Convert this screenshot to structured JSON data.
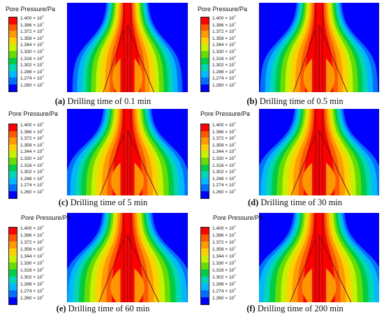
{
  "legend": {
    "title": "Pore Pressure/Pa",
    "labels": [
      {
        "mantissa": "1.400",
        "exp": "7"
      },
      {
        "mantissa": "1.386",
        "exp": "7"
      },
      {
        "mantissa": "1.372",
        "exp": "7"
      },
      {
        "mantissa": "1.358",
        "exp": "7"
      },
      {
        "mantissa": "1.344",
        "exp": "7"
      },
      {
        "mantissa": "1.330",
        "exp": "7"
      },
      {
        "mantissa": "1.316",
        "exp": "7"
      },
      {
        "mantissa": "1.302",
        "exp": "7"
      },
      {
        "mantissa": "1.288",
        "exp": "7"
      },
      {
        "mantissa": "1.274",
        "exp": "7"
      },
      {
        "mantissa": "1.260",
        "exp": "7"
      }
    ],
    "colors": [
      "#ff0000",
      "#ff5a00",
      "#ff9a00",
      "#ffd000",
      "#c8f000",
      "#66dd00",
      "#00cc44",
      "#00d6b4",
      "#00b8ff",
      "#0070ff",
      "#0000ff"
    ],
    "times_sign": "×",
    "base": "10"
  },
  "panels": [
    {
      "letter": "(a)",
      "caption": " Drilling time of 0.1 min"
    },
    {
      "letter": "(b)",
      "caption": " Drilling time of 0.5 min"
    },
    {
      "letter": "(c)",
      "caption": " Drilling time of 5 min"
    },
    {
      "letter": "(d)",
      "caption": " Drilling time of 30 min"
    },
    {
      "letter": "(e)",
      "caption": " Drilling time of 60 min"
    },
    {
      "letter": "(f)",
      "caption": " Drilling time of 200 min"
    }
  ]
}
